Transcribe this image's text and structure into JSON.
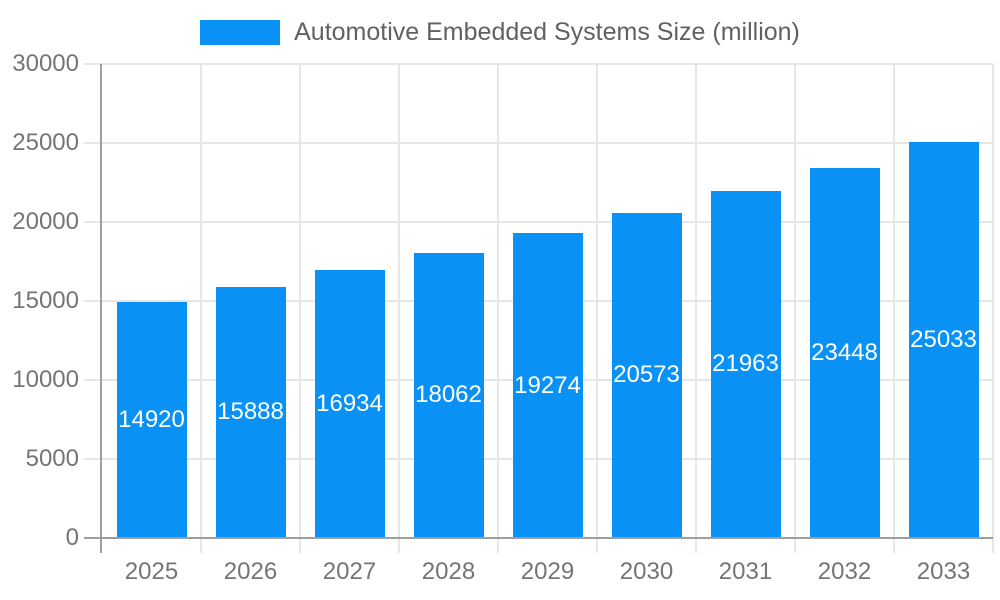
{
  "chart_data": {
    "type": "bar",
    "title": "",
    "legend": "Automotive Embedded Systems Size (million)",
    "legend_position": "top",
    "categories": [
      "2025",
      "2026",
      "2027",
      "2028",
      "2029",
      "2030",
      "2031",
      "2032",
      "2033"
    ],
    "series": [
      {
        "name": "Automotive Embedded Systems Size (million)",
        "values": [
          14920,
          15888,
          16934,
          18062,
          19274,
          20573,
          21963,
          23448,
          25033
        ]
      }
    ],
    "xlabel": "",
    "ylabel": "",
    "ylim": [
      0,
      30000
    ],
    "yticks": [
      0,
      5000,
      10000,
      15000,
      20000,
      25000,
      30000
    ],
    "grid": true,
    "value_labels_inside_bars": true,
    "colors": {
      "bar": "#0991f5",
      "value_label_text": "#ffffff",
      "gridline": "#e6e6e6",
      "axis_line": "#9e9e9e",
      "axis_text": "#757575",
      "legend_text": "#616161"
    }
  }
}
